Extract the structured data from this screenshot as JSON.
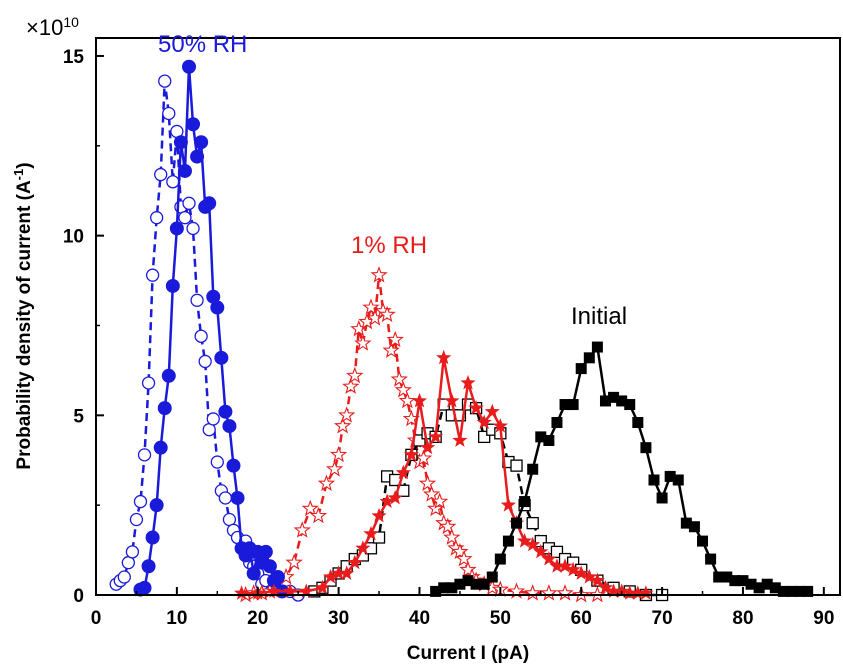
{
  "chart_data": {
    "type": "line",
    "xlabel": "Current I (pA)",
    "ylabel": "Probability density of current (A",
    "ylabel_sup": "-1",
    "ylabel_end": ")",
    "y_multiplier_prefix": "×10",
    "y_multiplier_exp": "10",
    "xlim": [
      0,
      92
    ],
    "ylim": [
      0,
      15.5
    ],
    "x_ticks": [
      0,
      10,
      20,
      30,
      40,
      50,
      60,
      70,
      80,
      90
    ],
    "x_tick_labels": [
      "0",
      "10",
      "20",
      "30",
      "40",
      "50",
      "60",
      "70",
      "80",
      "90"
    ],
    "y_ticks": [
      0,
      5,
      10,
      15
    ],
    "y_tick_labels": [
      "0",
      "5",
      "10",
      "15"
    ],
    "grid": false,
    "annotations": [
      {
        "text": "50% RH",
        "color": "#1a1adb"
      },
      {
        "text": "1% RH",
        "color": "#e81c1c"
      },
      {
        "text": "Initial",
        "color": "#000000"
      }
    ],
    "series": [
      {
        "marker": "filled-circle",
        "line": "solid",
        "color": "#1a1adb",
        "x": [
          5.5,
          6.0,
          6.5,
          7.0,
          7.5,
          8.0,
          8.5,
          9.0,
          9.5,
          10.0,
          10.5,
          11.0,
          11.5,
          12.0,
          12.5,
          13.0,
          13.5,
          14.0,
          14.5,
          15.0,
          15.5,
          16.0,
          16.5,
          17.0,
          17.5,
          18.0,
          18.5,
          19.0,
          19.5,
          20.0,
          20.5,
          21.0,
          21.5,
          22.0,
          22.5,
          23.0
        ],
        "y": [
          0.15,
          0.2,
          0.8,
          1.6,
          2.5,
          4.1,
          5.2,
          6.1,
          8.6,
          10.2,
          12.6,
          11.8,
          14.7,
          13.1,
          12.2,
          12.6,
          10.8,
          10.9,
          8.3,
          8.0,
          6.6,
          5.1,
          4.7,
          3.6,
          2.7,
          1.3,
          1.1,
          1.3,
          0.6,
          1.2,
          0.9,
          1.2,
          0.8,
          0.4,
          0.5,
          0.1
        ]
      },
      {
        "marker": "open-circle",
        "line": "dashed",
        "color": "#1a1adb",
        "x": [
          2.5,
          3.0,
          3.5,
          4.0,
          4.5,
          5.0,
          5.5,
          6.0,
          6.5,
          7.0,
          7.5,
          8.0,
          8.5,
          9.0,
          9.5,
          10.0,
          10.5,
          11.0,
          11.5,
          12.0,
          12.5,
          13.0,
          13.5,
          14.0,
          14.5,
          15.0,
          15.5,
          16.0,
          16.5,
          17.0,
          17.5,
          18.0,
          18.5,
          19.0,
          19.5,
          20.0,
          20.5,
          21.0,
          22.0,
          23.0,
          24.0,
          25.0
        ],
        "y": [
          0.3,
          0.4,
          0.5,
          0.9,
          1.2,
          2.1,
          2.6,
          3.9,
          5.9,
          8.9,
          10.5,
          11.7,
          14.3,
          13.4,
          11.5,
          12.9,
          10.8,
          10.5,
          10.9,
          10.2,
          8.2,
          7.2,
          6.5,
          4.6,
          4.9,
          3.7,
          2.9,
          2.7,
          2.1,
          1.8,
          1.6,
          1.3,
          1.5,
          0.9,
          0.8,
          0.6,
          0.3,
          0.4,
          0.2,
          0.1,
          0.1,
          0.0
        ]
      },
      {
        "marker": "filled-star",
        "line": "solid",
        "color": "#e81c1c",
        "x": [
          18,
          20,
          22,
          24,
          26,
          28,
          29,
          30,
          31,
          32,
          33,
          34,
          35,
          36,
          37,
          38,
          39,
          40,
          41,
          42,
          43,
          44,
          45,
          46,
          47,
          48,
          49,
          50,
          51,
          52,
          53,
          54,
          55,
          56,
          57,
          58,
          59,
          60,
          61,
          62,
          63,
          64,
          65,
          66,
          67,
          68
        ],
        "y": [
          0.05,
          0.05,
          0.1,
          0.1,
          0.1,
          0.2,
          0.5,
          0.6,
          0.6,
          0.9,
          1.3,
          1.7,
          2.2,
          2.6,
          2.7,
          3.4,
          3.9,
          5.4,
          4.1,
          4.4,
          6.6,
          5.4,
          4.3,
          5.9,
          5.2,
          4.8,
          5.1,
          4.7,
          2.5,
          2.0,
          1.5,
          1.4,
          1.2,
          1.0,
          0.8,
          0.8,
          0.7,
          0.6,
          0.5,
          0.4,
          0.2,
          0.1,
          0.1,
          0.05,
          0.05,
          0.05
        ]
      },
      {
        "marker": "open-star",
        "line": "dashed",
        "color": "#e81c1c",
        "x": [
          18.5,
          19.5,
          20.5,
          21.5,
          22.5,
          23.5,
          24.5,
          25.5,
          26.5,
          27.5,
          28.5,
          29.5,
          30.0,
          30.5,
          31.0,
          31.5,
          32.0,
          32.5,
          33.0,
          33.5,
          34.0,
          34.5,
          35.0,
          35.5,
          36.0,
          36.5,
          37.0,
          37.5,
          38.0,
          38.5,
          39.0,
          39.5,
          40.0,
          40.5,
          41.0,
          41.5,
          42.0,
          42.5,
          43.0,
          43.5,
          44.0,
          44.5,
          45.0,
          45.5,
          46.0,
          46.5,
          47.0,
          48.0,
          49.0,
          50.0,
          52.0,
          54.0,
          56.0,
          58.0,
          60.0,
          62.0
        ],
        "y": [
          0.0,
          0.05,
          0.05,
          0.1,
          0.2,
          0.5,
          0.9,
          1.8,
          2.4,
          2.2,
          3.1,
          3.5,
          3.9,
          4.7,
          5.0,
          5.8,
          6.1,
          7.4,
          7.0,
          7.6,
          8.0,
          7.7,
          8.9,
          7.9,
          7.8,
          6.8,
          7.1,
          6.0,
          5.7,
          5.4,
          4.9,
          4.3,
          3.7,
          3.8,
          3.1,
          2.8,
          2.4,
          2.6,
          2.0,
          1.9,
          1.6,
          1.3,
          1.2,
          1.0,
          0.7,
          0.5,
          0.4,
          0.3,
          0.2,
          0.15,
          0.1,
          0.05,
          0.05,
          0.05,
          0.0,
          0.0
        ]
      },
      {
        "marker": "open-square",
        "line": "dashed",
        "color": "#000000",
        "x": [
          27,
          28,
          29,
          30,
          31,
          32,
          33,
          34,
          35,
          36,
          37,
          38,
          39,
          40,
          41,
          42,
          43,
          44,
          45,
          46,
          47,
          48,
          49,
          50,
          51,
          52,
          53,
          54,
          55,
          56,
          57,
          58,
          59,
          60,
          62,
          64,
          66,
          68,
          70
        ],
        "y": [
          0.1,
          0.2,
          0.4,
          0.6,
          0.8,
          1.0,
          1.1,
          1.3,
          1.6,
          3.3,
          3.2,
          2.9,
          3.9,
          4.3,
          4.5,
          4.4,
          5.3,
          5.0,
          5.0,
          5.3,
          5.2,
          4.4,
          4.6,
          4.5,
          3.7,
          3.6,
          2.5,
          2.0,
          1.5,
          1.3,
          1.2,
          1.0,
          0.9,
          0.7,
          0.4,
          0.2,
          0.1,
          0.0,
          0.0
        ]
      },
      {
        "marker": "filled-square",
        "line": "solid",
        "color": "#000000",
        "x": [
          42,
          43,
          44,
          45,
          46,
          47,
          48,
          49,
          50,
          51,
          52,
          53,
          54,
          55,
          56,
          57,
          58,
          59,
          60,
          61,
          62,
          63,
          64,
          65,
          66,
          67,
          68,
          69,
          70,
          71,
          72,
          73,
          74,
          75,
          76,
          77,
          78,
          79,
          80,
          81,
          82,
          83,
          84,
          85,
          86,
          87,
          88
        ],
        "y": [
          0.1,
          0.2,
          0.2,
          0.3,
          0.4,
          0.3,
          0.3,
          0.5,
          1.0,
          1.5,
          2.0,
          2.6,
          3.5,
          4.4,
          4.3,
          4.8,
          5.3,
          5.3,
          6.3,
          6.6,
          6.9,
          5.4,
          5.5,
          5.4,
          5.3,
          4.8,
          4.1,
          3.2,
          2.7,
          3.3,
          3.2,
          2.0,
          1.9,
          1.5,
          1.0,
          0.5,
          0.5,
          0.4,
          0.4,
          0.3,
          0.2,
          0.3,
          0.2,
          0.1,
          0.1,
          0.1,
          0.1
        ]
      }
    ]
  }
}
